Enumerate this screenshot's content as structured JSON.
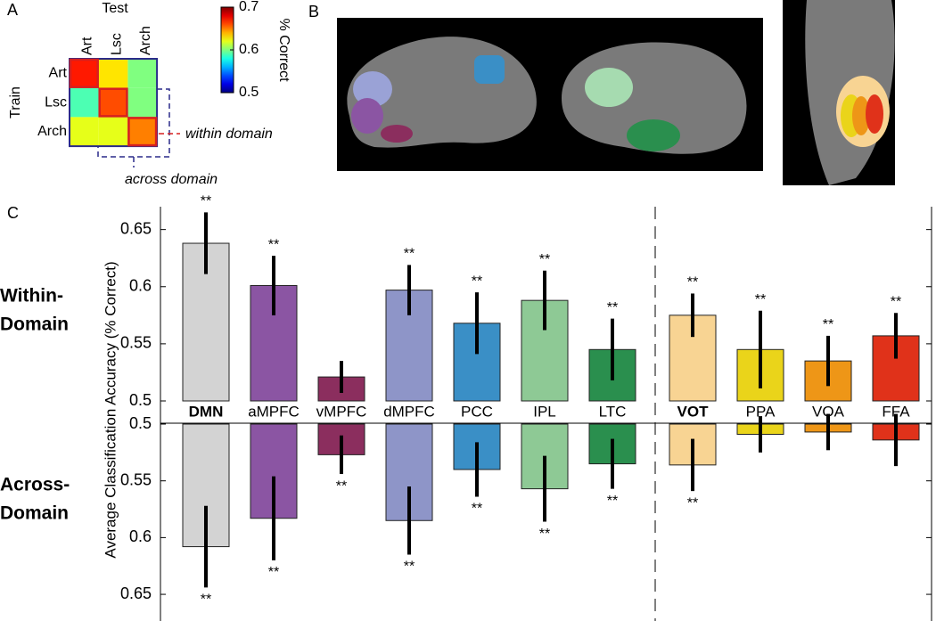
{
  "figure": {
    "panel_labels": [
      "A",
      "B",
      "C"
    ]
  },
  "chart_data": [
    {
      "type": "heatmap",
      "xlabel": "Test",
      "ylabel": "Train",
      "x_categories": [
        "Art",
        "Lsc",
        "Arch"
      ],
      "y_categories": [
        "Art",
        "Lsc",
        "Arch"
      ],
      "values": [
        [
          0.67,
          0.63,
          0.6
        ],
        [
          0.59,
          0.66,
          0.6
        ],
        [
          0.62,
          0.62,
          0.65
        ]
      ],
      "clim": [
        0.5,
        0.7
      ],
      "cticks": [
        0.5,
        0.6,
        0.7
      ],
      "colorbar_label": "% Correct",
      "colormap": "jet",
      "annotations": [
        "within domain",
        "across domain"
      ]
    },
    {
      "type": "bar",
      "ylabel": "Average Classification Accuracy (% Correct)",
      "categories": [
        "DMN",
        "aMPFC",
        "vMPFC",
        "dMPFC",
        "PCC",
        "IPL",
        "LTC",
        "VOT",
        "PPA",
        "VOA",
        "FFA"
      ],
      "bold_indices": [
        0,
        7
      ],
      "divider_after": 6,
      "colors": [
        "#d3d3d3",
        "#8b55a3",
        "#8b2e5e",
        "#8e95c8",
        "#3a8fc6",
        "#8ec995",
        "#2a8f4e",
        "#f8d493",
        "#ead41a",
        "#ee9617",
        "#e0321a"
      ],
      "panels": [
        {
          "label_lines": [
            "Within-",
            "Domain"
          ],
          "direction": "up",
          "values": [
            0.638,
            0.601,
            0.521,
            0.597,
            0.568,
            0.588,
            0.545,
            0.575,
            0.545,
            0.535,
            0.557
          ],
          "errors": [
            0.027,
            0.026,
            0.014,
            0.022,
            0.027,
            0.026,
            0.027,
            0.019,
            0.034,
            0.022,
            0.02
          ],
          "significance": [
            "**",
            "**",
            null,
            "**",
            "**",
            "**",
            "**",
            "**",
            "**",
            "**",
            "**"
          ],
          "ylim": [
            0.5,
            0.67
          ],
          "yticks": [
            0.5,
            0.55,
            0.6,
            0.65
          ]
        },
        {
          "label_lines": [
            "Across-",
            "Domain"
          ],
          "direction": "down",
          "values": [
            0.608,
            0.583,
            0.527,
            0.585,
            0.54,
            0.557,
            0.535,
            0.536,
            0.509,
            0.507,
            0.514
          ],
          "errors": [
            0.036,
            0.037,
            0.017,
            0.03,
            0.024,
            0.029,
            0.022,
            0.023,
            0.016,
            0.016,
            0.023
          ],
          "significance": [
            "**",
            "**",
            "**",
            "**",
            "**",
            "**",
            "**",
            "**",
            null,
            null,
            null
          ],
          "ylim": [
            0.5,
            0.668
          ],
          "yticks": [
            0.5,
            0.55,
            0.6,
            0.65
          ]
        }
      ]
    }
  ]
}
